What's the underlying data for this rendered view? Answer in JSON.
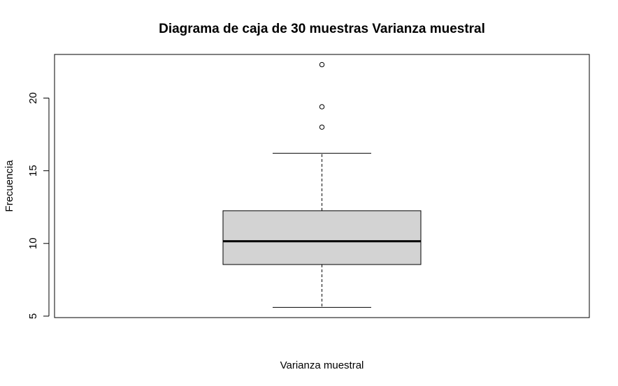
{
  "chart_data": {
    "type": "boxplot",
    "title": "Diagrama de caja de 30 muestras Varianza muestral",
    "xlabel": "Varianza muestral",
    "ylabel": "Frecuencia",
    "ylim": [
      4.9,
      23.0
    ],
    "yticks": [
      5,
      10,
      15,
      20
    ],
    "ytick_labels": [
      "5",
      "10",
      "15",
      "20"
    ],
    "grid": false,
    "legend": "none",
    "box": {
      "lower_whisker": 5.6,
      "q1": 8.55,
      "median": 10.15,
      "q3": 12.25,
      "upper_whisker": 16.2,
      "outliers": [
        18.0,
        19.4,
        22.3
      ]
    },
    "colors": {
      "box_fill": "#d3d3d3",
      "stroke": "#000000"
    }
  }
}
